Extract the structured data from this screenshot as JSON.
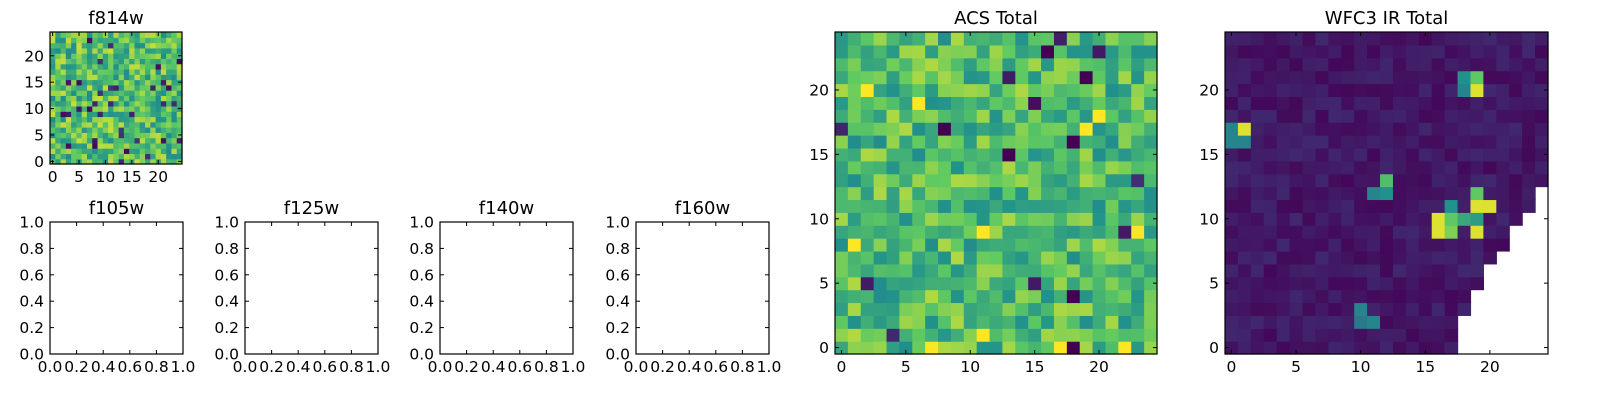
{
  "palette": [
    "#440154",
    "#3b528b",
    "#21918c",
    "#5ec962",
    "#fde725"
  ],
  "chart_data": [
    {
      "id": "f814w",
      "type": "heatmap",
      "title": "f814w",
      "grid_size": 25,
      "color_range": [
        0,
        1
      ],
      "color_scale": "viridis",
      "xticks": [
        0,
        5,
        10,
        15,
        20
      ],
      "yticks": [
        0,
        5,
        10,
        15,
        20
      ],
      "xtick_labels": [
        "0",
        "5",
        "10",
        "15",
        "20"
      ],
      "ytick_labels": [
        "0",
        "5",
        "10",
        "15",
        "20"
      ],
      "seed": 814,
      "field": "noise",
      "base": 0.7,
      "spread": 0.22,
      "dark_fraction": 0.04
    },
    {
      "id": "f105w",
      "type": "empty",
      "title": "f105w",
      "xlim": [
        0,
        1
      ],
      "ylim": [
        0,
        1
      ],
      "xtick_labels": [
        "0.0",
        "0.2",
        "0.4",
        "0.6",
        "0.8",
        "1.0"
      ],
      "ytick_labels": [
        "0.0",
        "0.2",
        "0.4",
        "0.6",
        "0.8",
        "1.0"
      ]
    },
    {
      "id": "f125w",
      "type": "empty",
      "title": "f125w",
      "xlim": [
        0,
        1
      ],
      "ylim": [
        0,
        1
      ],
      "xtick_labels": [
        "0.0",
        "0.2",
        "0.4",
        "0.6",
        "0.8",
        "1.0"
      ],
      "ytick_labels": [
        "0.0",
        "0.2",
        "0.4",
        "0.6",
        "0.8",
        "1.0"
      ]
    },
    {
      "id": "f140w",
      "type": "empty",
      "title": "f140w",
      "xlim": [
        0,
        1
      ],
      "ylim": [
        0,
        1
      ],
      "xtick_labels": [
        "0.0",
        "0.2",
        "0.4",
        "0.6",
        "0.8",
        "1.0"
      ],
      "ytick_labels": [
        "0.0",
        "0.2",
        "0.4",
        "0.6",
        "0.8",
        "1.0"
      ]
    },
    {
      "id": "f160w",
      "type": "empty",
      "title": "f160w",
      "xlim": [
        0,
        1
      ],
      "ylim": [
        0,
        1
      ],
      "xtick_labels": [
        "0.0",
        "0.2",
        "0.4",
        "0.6",
        "0.8",
        "1.0"
      ],
      "ytick_labels": [
        "0.0",
        "0.2",
        "0.4",
        "0.6",
        "0.8",
        "1.0"
      ]
    },
    {
      "id": "acs-total",
      "type": "heatmap",
      "title": "ACS Total",
      "grid_size": 25,
      "color_range": [
        0,
        1
      ],
      "color_scale": "viridis",
      "xticks": [
        0,
        5,
        10,
        15,
        20
      ],
      "yticks": [
        0,
        5,
        10,
        15,
        20
      ],
      "xtick_labels": [
        "0",
        "5",
        "10",
        "15",
        "20"
      ],
      "ytick_labels": [
        "0",
        "5",
        "10",
        "15",
        "20"
      ],
      "seed": 2718,
      "field": "noise",
      "base": 0.68,
      "spread": 0.2,
      "dark_fraction": 0.02,
      "dark_cells": [
        [
          8,
          17
        ],
        [
          13,
          15
        ],
        [
          16,
          23
        ],
        [
          19,
          21
        ],
        [
          18,
          16
        ],
        [
          18,
          4
        ],
        [
          18,
          0
        ]
      ],
      "bright_cells": [
        [
          1,
          8
        ],
        [
          2,
          20
        ],
        [
          6,
          19
        ],
        [
          7,
          0
        ],
        [
          11,
          9
        ],
        [
          11,
          1
        ],
        [
          19,
          17
        ],
        [
          20,
          18
        ],
        [
          22,
          0
        ],
        [
          23,
          9
        ],
        [
          17,
          0
        ]
      ]
    },
    {
      "id": "wfc3-ir-total",
      "type": "heatmap",
      "title": "WFC3 IR Total",
      "grid_size": 25,
      "color_range": [
        0,
        1
      ],
      "color_scale": "viridis",
      "xticks": [
        0,
        5,
        10,
        15,
        20
      ],
      "yticks": [
        0,
        5,
        10,
        15,
        20
      ],
      "xtick_labels": [
        "0",
        "5",
        "10",
        "15",
        "20"
      ],
      "ytick_labels": [
        "0",
        "5",
        "10",
        "15",
        "20"
      ],
      "seed": 160,
      "field": "noise",
      "base": 0.07,
      "spread": 0.05,
      "dark_fraction": 0,
      "hot_cells": [
        [
          1,
          17,
          0.95
        ],
        [
          0,
          17,
          0.45
        ],
        [
          0,
          16,
          0.45
        ],
        [
          1,
          16,
          0.45
        ],
        [
          18,
          21,
          0.5
        ],
        [
          18,
          20,
          0.45
        ],
        [
          19,
          21,
          0.75
        ],
        [
          19,
          20,
          0.95
        ],
        [
          12,
          13,
          0.7
        ],
        [
          11,
          12,
          0.45
        ],
        [
          12,
          12,
          0.5
        ],
        [
          17,
          11,
          0.5
        ],
        [
          19,
          12,
          0.75
        ],
        [
          19,
          11,
          0.95
        ],
        [
          20,
          11,
          0.95
        ],
        [
          16,
          10,
          0.95
        ],
        [
          16,
          9,
          0.95
        ],
        [
          17,
          10,
          0.75
        ],
        [
          17,
          9,
          0.8
        ],
        [
          18,
          10,
          0.6
        ],
        [
          19,
          10,
          0.55
        ],
        [
          19,
          9,
          0.95
        ],
        [
          10,
          3,
          0.45
        ],
        [
          10,
          2,
          0.4
        ],
        [
          11,
          2,
          0.45
        ]
      ],
      "nan_cells_by_row": [
        [
          0,
          18
        ],
        [
          1,
          18
        ],
        [
          2,
          18
        ],
        [
          3,
          19
        ],
        [
          4,
          19
        ],
        [
          5,
          20
        ],
        [
          6,
          20
        ],
        [
          7,
          21
        ],
        [
          8,
          22
        ],
        [
          9,
          22
        ],
        [
          10,
          23
        ],
        [
          11,
          24
        ],
        [
          12,
          24
        ]
      ]
    }
  ]
}
